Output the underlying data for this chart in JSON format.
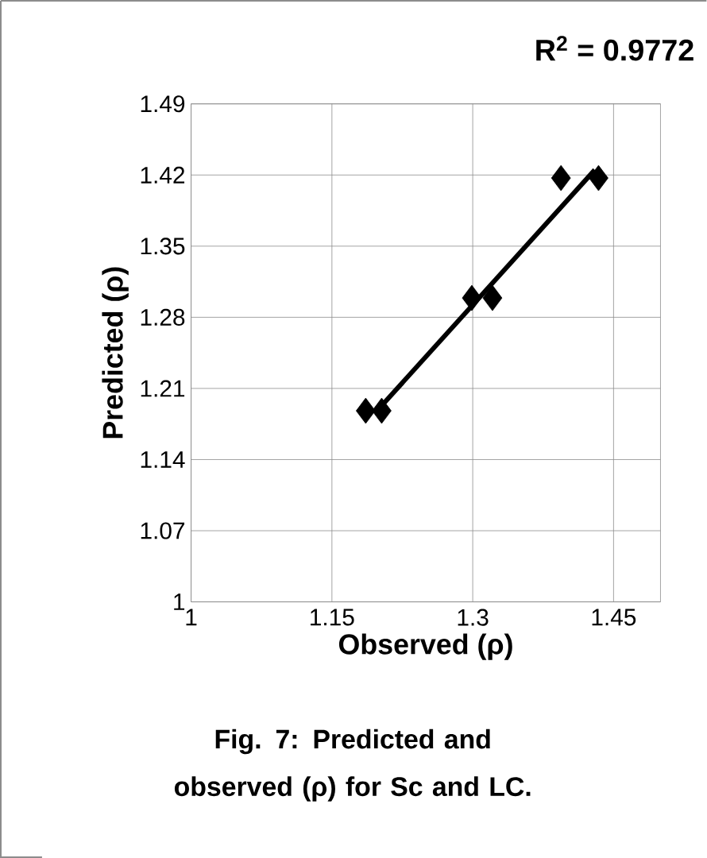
{
  "chart_data": {
    "type": "scatter",
    "xlabel": "Observed (ρ)",
    "ylabel": "Predicted (ρ)",
    "annotations": [
      "R$^{2}$ = 0.9772",
      "Fig. 7: Predicted and observed (ρ) for Sc and LC."
    ],
    "xlim": [
      1,
      1.5
    ],
    "ylim": [
      1,
      1.49
    ],
    "xticks": [
      1,
      1.15,
      1.3,
      1.45
    ],
    "yticks": [
      1,
      1.07,
      1.14,
      1.21,
      1.28,
      1.35,
      1.42,
      1.49
    ],
    "grid": true,
    "series": [
      {
        "marker": "diamond",
        "color": "#000000",
        "x": [
          1.186,
          1.203,
          1.299,
          1.321,
          1.394,
          1.434
        ],
        "values": [
          1.188,
          1.188,
          1.299,
          1.299,
          1.417,
          1.417
        ]
      },
      {
        "type": "line",
        "color": "#000000",
        "x": [
          1.2,
          1.43
        ],
        "values": [
          1.19,
          1.425
        ]
      }
    ]
  }
}
